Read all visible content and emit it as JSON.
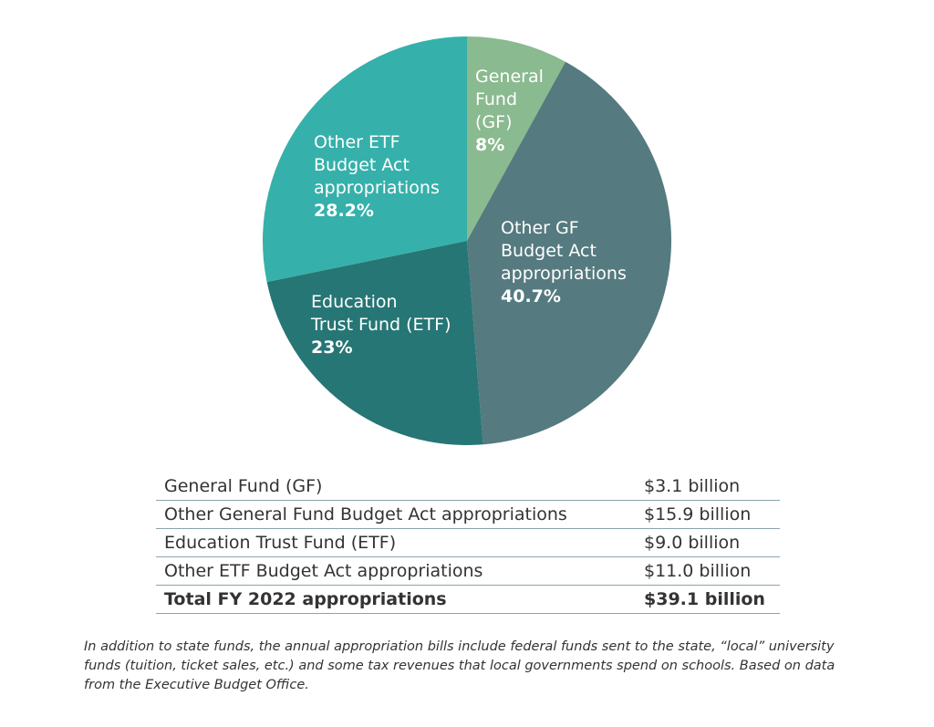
{
  "chart_data": {
    "type": "pie",
    "slices": [
      {
        "label_lines": [
          "General",
          "Fund",
          "(GF)"
        ],
        "value": 8,
        "pct_label": "8%",
        "color": "#8aba8f"
      },
      {
        "label_lines": [
          "Other GF",
          "Budget Act",
          "appropriations"
        ],
        "value": 40.7,
        "pct_label": "40.7%",
        "color": "#557a7f"
      },
      {
        "label_lines": [
          "Education",
          "Trust Fund (ETF)"
        ],
        "value": 23,
        "pct_label": "23%",
        "color": "#267675"
      },
      {
        "label_lines": [
          "Other ETF",
          "Budget Act",
          "appropriations"
        ],
        "value": 28.2,
        "pct_label": "28.2%",
        "color": "#36b0aa"
      }
    ],
    "table": [
      {
        "label": "General Fund (GF)",
        "amount": "$3.1 billion"
      },
      {
        "label": "Other General Fund Budget Act appropriations",
        "amount": "$15.9 billion"
      },
      {
        "label": "Education Trust Fund (ETF)",
        "amount": "$9.0 billion"
      },
      {
        "label": "Other ETF Budget Act appropriations",
        "amount": "$11.0 billion"
      }
    ],
    "total": {
      "label": "Total FY 2022 appropriations",
      "amount": "$39.1 billion"
    }
  },
  "footnote": "In addition to state funds, the annual appropriation bills include federal funds sent to the state, “local” university funds (tuition, ticket sales, etc.) and some tax revenues that local governments spend on schools. Based on data from the Executive Budget Office."
}
